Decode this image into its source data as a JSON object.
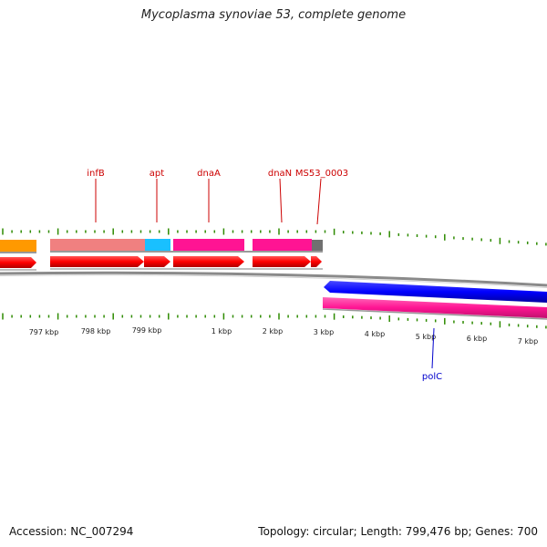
{
  "title": "Mycoplasma synoviae 53, complete genome",
  "footer": {
    "accession": "Accession: NC_007294",
    "summary": "Topology: circular; Length: 799,476 bp; Genes: 700"
  },
  "colors": {
    "gene_label": "#cc0000",
    "reverse_label": "#0000cc",
    "tick": "#2e8b00",
    "forward_cds": "#ff0000",
    "reverse_cds": "#0000ff",
    "backbone": "#888888",
    "orange": "#ff9900",
    "salmon": "#f08080",
    "cyan": "#19c0ff",
    "pink": "#ff1493",
    "gray": "#707070"
  },
  "gene_labels": [
    {
      "name": "infB"
    },
    {
      "name": "apt"
    },
    {
      "name": "dnaA"
    },
    {
      "name": "dnaN"
    },
    {
      "name": "MS53_0003"
    },
    {
      "name": "polC"
    }
  ],
  "axis_labels": [
    "797 kbp",
    "798 kbp",
    "799 kbp",
    "1 kbp",
    "2 kbp",
    "3 kbp",
    "4 kbp",
    "5 kbp",
    "6 kbp",
    "7 kbp"
  ]
}
